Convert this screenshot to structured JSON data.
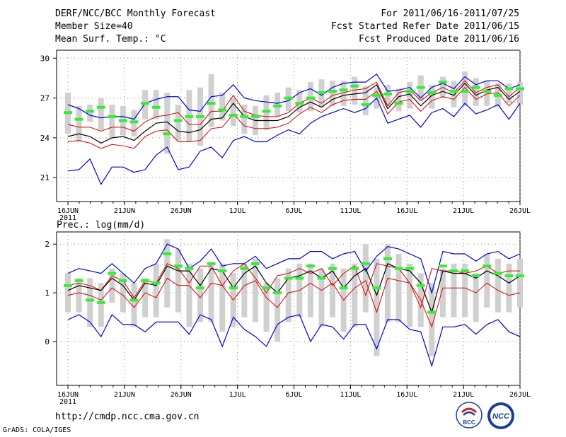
{
  "header": {
    "title": "DERF/NCC/BCC Monthly Forecast",
    "member": "Member Size=40",
    "variable": "Mean Surf. Temp.: °C",
    "period": "For 2011/06/16-2011/07/25",
    "refer": "Fcst Started Refer Date 2011/06/15",
    "produced": "Fcst Produced Date 2011/06/16"
  },
  "footer": {
    "url": "http://cmdp.ncc.cma.gov.cn",
    "credit": "GrADS: COLA/IGES"
  },
  "logos": {
    "bcc": "BCC",
    "ncc": "NCC"
  },
  "colors": {
    "envelope": "#0000dd",
    "spread": "#dd0000",
    "mean": "#000000",
    "obs": "#33ee33",
    "box": "#d0d0d0"
  },
  "chart_data": [
    {
      "type": "line",
      "title": "Mean Surf. Temp.: °C",
      "xlabel": "",
      "ylabel": "°C",
      "x_ticks": [
        "16JUN",
        "21JUN",
        "26JUN",
        "1JUL",
        "6JUL",
        "11JUL",
        "16JUL",
        "21JUL",
        "26JUL"
      ],
      "x_year": "2011",
      "ylim": [
        19.2,
        30.6
      ],
      "y_ticks": [
        "21",
        "24",
        "27",
        "30"
      ],
      "y_tick_values": [
        21,
        24,
        27,
        30
      ],
      "series": [
        {
          "name": "max",
          "values": [
            26.5,
            26.2,
            25.7,
            25.5,
            25.6,
            25.6,
            25.4,
            26.6,
            26.9,
            27.1,
            27.1,
            26.1,
            26.0,
            27.1,
            27.2,
            28.0,
            27.0,
            26.8,
            26.7,
            26.6,
            26.8,
            27.4,
            27.7,
            27.2,
            27.8,
            28.1,
            28.2,
            28.2,
            28.8,
            27.5,
            27.6,
            27.8,
            27.0,
            27.8,
            28.1,
            27.7,
            28.6,
            28.0,
            28.3,
            28.3,
            27.7,
            28.0
          ]
        },
        {
          "name": "upper",
          "values": [
            25.0,
            24.8,
            24.8,
            24.5,
            24.8,
            24.8,
            24.5,
            25.2,
            25.6,
            25.7,
            25.9,
            25.0,
            25.0,
            26.0,
            26.0,
            27.2,
            26.0,
            25.7,
            25.6,
            25.6,
            25.9,
            26.6,
            27.0,
            26.6,
            27.2,
            27.4,
            27.6,
            27.7,
            28.2,
            26.4,
            27.4,
            27.6,
            26.8,
            27.4,
            27.8,
            27.4,
            28.3,
            27.4,
            27.8,
            28.0,
            27.1,
            27.8
          ]
        },
        {
          "name": "mean",
          "values": [
            24.1,
            24.3,
            24.1,
            23.6,
            24.0,
            24.1,
            23.8,
            24.5,
            25.1,
            25.2,
            24.5,
            24.4,
            24.6,
            25.4,
            25.5,
            26.6,
            25.6,
            25.3,
            25.3,
            25.3,
            25.6,
            26.3,
            26.7,
            26.3,
            26.9,
            27.2,
            27.3,
            27.4,
            28.0,
            26.2,
            27.1,
            27.3,
            26.4,
            27.2,
            27.5,
            27.2,
            28.1,
            27.2,
            27.6,
            27.8,
            26.9,
            27.5
          ]
        },
        {
          "name": "lower",
          "values": [
            23.7,
            23.8,
            23.6,
            23.2,
            23.5,
            23.4,
            23.2,
            24.1,
            24.5,
            24.6,
            23.7,
            23.7,
            23.8,
            24.7,
            24.8,
            25.8,
            24.9,
            24.7,
            24.7,
            24.8,
            25.1,
            25.8,
            26.3,
            25.9,
            26.5,
            26.8,
            26.9,
            26.9,
            27.5,
            25.8,
            26.7,
            26.9,
            26.0,
            26.8,
            27.1,
            26.9,
            27.8,
            26.9,
            27.3,
            27.4,
            26.4,
            27.2
          ]
        },
        {
          "name": "min",
          "values": [
            21.5,
            21.6,
            22.4,
            20.5,
            21.8,
            21.8,
            21.4,
            21.6,
            22.7,
            23.3,
            21.6,
            21.8,
            23.0,
            23.3,
            22.5,
            23.8,
            24.1,
            23.7,
            23.7,
            24.2,
            24.6,
            24.3,
            25.1,
            25.6,
            25.9,
            26.2,
            25.9,
            26.2,
            27.0,
            25.1,
            25.4,
            25.7,
            24.8,
            25.9,
            26.2,
            25.6,
            26.6,
            25.8,
            26.1,
            26.5,
            25.4,
            26.6
          ]
        },
        {
          "name": "observed",
          "values": [
            25.9,
            25.4,
            26.0,
            26.3,
            25.6,
            25.3,
            25.2,
            26.6,
            26.3,
            24.3,
            25.3,
            25.6,
            25.6,
            26.6,
            26.1,
            25.7,
            25.6,
            25.6,
            26.0,
            26.4,
            27.0,
            26.6,
            27.0,
            27.4,
            27.5,
            27.6,
            27.9,
            26.5,
            27.2,
            27.3,
            26.6,
            27.5,
            27.8,
            27.4,
            28.2,
            27.5,
            27.5,
            27.8,
            27.5,
            27.2,
            27.7,
            27.7
          ]
        },
        {
          "name": "box_top",
          "values": [
            27.4,
            26.4,
            26.5,
            27.0,
            26.5,
            26.4,
            26.1,
            27.6,
            27.6,
            27.4,
            26.5,
            27.6,
            27.8,
            28.8,
            27.4,
            27.0,
            26.5,
            26.4,
            27.2,
            27.4,
            27.8,
            27.6,
            28.2,
            28.4,
            28.3,
            28.3,
            28.6,
            27.9,
            27.8,
            28.0,
            27.7,
            28.2,
            28.7,
            28.0,
            28.6,
            28.3,
            29.0,
            28.5,
            28.3,
            28.1,
            28.1,
            28.2
          ]
        },
        {
          "name": "box_bottom",
          "values": [
            24.3,
            23.7,
            25.2,
            24.6,
            24.0,
            24.2,
            24.1,
            25.4,
            25.4,
            22.8,
            23.8,
            23.7,
            23.4,
            24.8,
            25.3,
            24.9,
            24.3,
            24.2,
            24.6,
            25.6,
            26.0,
            25.9,
            26.0,
            26.3,
            26.4,
            26.4,
            26.5,
            25.7,
            26.2,
            26.4,
            26.0,
            26.2,
            26.8,
            26.2,
            27.0,
            26.3,
            26.4,
            26.4,
            26.4,
            26.3,
            26.6,
            26.5
          ]
        }
      ]
    },
    {
      "type": "line",
      "title": "Prec.: log(mm/d)",
      "xlabel": "",
      "ylabel": "log(mm/d)",
      "x_ticks": [
        "16JUN",
        "21JUN",
        "26JUN",
        "1JUL",
        "6JUL",
        "11JUL",
        "16JUL",
        "21JUL",
        "26JUL"
      ],
      "x_year": "2011",
      "ylim": [
        -0.9,
        2.25
      ],
      "y_ticks": [
        "0",
        "1",
        "2"
      ],
      "y_tick_values": [
        0,
        1,
        2
      ],
      "series": [
        {
          "name": "max",
          "values": [
            1.4,
            1.5,
            1.45,
            1.4,
            1.6,
            1.4,
            1.2,
            1.5,
            1.6,
            2.0,
            1.9,
            1.5,
            1.65,
            1.9,
            1.55,
            1.6,
            1.6,
            1.75,
            1.5,
            1.6,
            1.7,
            1.7,
            1.85,
            1.85,
            1.7,
            1.8,
            1.85,
            1.45,
            1.75,
            1.95,
            1.9,
            1.8,
            1.7,
            1.0,
            1.85,
            1.8,
            1.8,
            1.65,
            1.8,
            1.85,
            1.7,
            1.8
          ]
        },
        {
          "name": "upper",
          "values": [
            1.15,
            1.2,
            1.15,
            1.05,
            1.35,
            1.25,
            0.9,
            1.25,
            1.2,
            1.6,
            1.5,
            1.2,
            1.55,
            1.55,
            1.15,
            1.45,
            1.6,
            1.3,
            1.0,
            1.35,
            1.4,
            1.5,
            1.4,
            1.5,
            1.15,
            1.4,
            1.55,
            0.95,
            1.6,
            1.55,
            1.5,
            1.2,
            0.7,
            1.5,
            1.45,
            1.45,
            1.4,
            1.45,
            1.55,
            1.4,
            1.45,
            1.45
          ]
        },
        {
          "name": "mean",
          "values": [
            1.05,
            1.15,
            1.1,
            1.05,
            1.3,
            1.15,
            0.85,
            1.2,
            1.15,
            1.55,
            1.45,
            1.45,
            1.15,
            1.5,
            1.45,
            1.1,
            1.4,
            1.55,
            1.2,
            1.0,
            1.3,
            1.35,
            1.45,
            1.3,
            1.45,
            1.1,
            1.35,
            1.5,
            0.95,
            1.6,
            1.5,
            1.45,
            1.2,
            0.6,
            1.45,
            1.4,
            1.4,
            1.3,
            1.45,
            1.35,
            1.2,
            1.35
          ]
        },
        {
          "name": "lower",
          "values": [
            0.95,
            1.0,
            0.95,
            0.85,
            1.1,
            0.95,
            0.7,
            1.0,
            0.9,
            1.3,
            1.15,
            1.15,
            0.9,
            1.2,
            1.15,
            0.85,
            1.15,
            1.25,
            0.9,
            0.7,
            1.0,
            1.05,
            1.2,
            1.05,
            1.2,
            0.85,
            1.1,
            1.25,
            0.6,
            1.3,
            1.25,
            1.2,
            0.85,
            0.3,
            1.1,
            1.1,
            1.1,
            1.0,
            1.2,
            1.05,
            0.95,
            1.0
          ]
        },
        {
          "name": "min",
          "values": [
            0.45,
            0.55,
            0.4,
            0.1,
            0.55,
            0.35,
            0.35,
            0.2,
            0.4,
            0.4,
            0.4,
            0.15,
            0.55,
            0.45,
            -0.1,
            0.5,
            0.25,
            0.1,
            -0.1,
            0.35,
            0.5,
            0.55,
            0.0,
            0.35,
            0.3,
            0.05,
            0.35,
            0.35,
            -0.15,
            0.45,
            0.45,
            0.25,
            0.2,
            -0.5,
            0.3,
            0.3,
            0.35,
            0.15,
            0.35,
            0.45,
            0.2,
            0.1
          ]
        },
        {
          "name": "observed",
          "values": [
            1.15,
            1.25,
            0.85,
            0.8,
            1.4,
            1.25,
            0.85,
            1.25,
            1.2,
            1.8,
            1.55,
            1.5,
            1.1,
            1.6,
            1.45,
            1.1,
            1.5,
            1.6,
            1.1,
            1.0,
            1.3,
            1.3,
            1.55,
            1.3,
            1.5,
            1.1,
            1.5,
            1.6,
            1.1,
            1.7,
            1.5,
            1.5,
            1.15,
            0.6,
            1.55,
            1.45,
            1.45,
            1.35,
            1.55,
            1.4,
            1.35,
            1.35
          ]
        },
        {
          "name": "box_top",
          "values": [
            1.4,
            1.3,
            1.3,
            1.2,
            1.5,
            1.4,
            1.2,
            1.3,
            1.6,
            2.1,
            1.9,
            1.6,
            1.5,
            1.6,
            1.6,
            1.4,
            1.6,
            1.7,
            1.2,
            1.3,
            1.5,
            1.6,
            1.6,
            1.5,
            1.6,
            1.5,
            1.6,
            2.0,
            1.7,
            2.0,
            1.8,
            1.6,
            1.4,
            1.2,
            1.5,
            1.6,
            1.6,
            1.4,
            1.8,
            1.7,
            1.6,
            1.7
          ]
        },
        {
          "name": "box_bottom",
          "values": [
            0.6,
            0.6,
            0.3,
            0.3,
            0.8,
            0.6,
            0.3,
            0.5,
            0.5,
            0.7,
            0.6,
            0.3,
            0.4,
            0.4,
            0.2,
            0.3,
            0.5,
            0.4,
            0.2,
            0.0,
            0.4,
            0.5,
            0.5,
            0.3,
            0.5,
            0.2,
            0.3,
            0.6,
            -0.3,
            0.4,
            0.4,
            0.3,
            0.3,
            -0.3,
            0.5,
            0.5,
            0.5,
            0.4,
            0.7,
            0.6,
            0.6,
            0.7
          ]
        }
      ]
    }
  ]
}
